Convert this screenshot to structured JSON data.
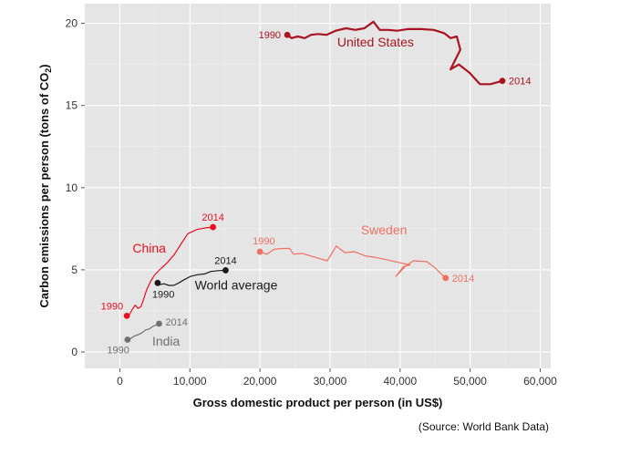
{
  "chart_data": {
    "type": "line",
    "xlabel": "Gross domestic product per person (in US$)",
    "ylabel": "Carbon emissions per person (tons of CO",
    "ylabel_sub": "2",
    "ylabel_suffix": ")",
    "xlim": [
      -5000,
      61500
    ],
    "ylim": [
      -1,
      21.2
    ],
    "x_ticks": [
      0,
      10000,
      20000,
      30000,
      40000,
      50000,
      60000
    ],
    "x_tick_labels": [
      "0",
      "10,000",
      "20,000",
      "30,000",
      "40,000",
      "50,000",
      "60,000"
    ],
    "y_ticks": [
      0,
      5,
      10,
      15,
      20
    ],
    "y_tick_labels": [
      "0",
      "5",
      "10",
      "15",
      "20"
    ],
    "grid": true,
    "background": "#e5e5e5",
    "series": [
      {
        "name": "United States",
        "color": "#a8141f",
        "width": 2.2,
        "start_label": "1990",
        "end_label": "2014",
        "points": [
          [
            23900,
            19.3
          ],
          [
            24500,
            19.1
          ],
          [
            25400,
            19.2
          ],
          [
            26400,
            19.1
          ],
          [
            27300,
            19.3
          ],
          [
            28300,
            19.35
          ],
          [
            29500,
            19.3
          ],
          [
            30800,
            19.55
          ],
          [
            32300,
            19.7
          ],
          [
            33600,
            19.6
          ],
          [
            34900,
            19.7
          ],
          [
            36200,
            20.1
          ],
          [
            37100,
            19.6
          ],
          [
            38300,
            19.6
          ],
          [
            39600,
            19.55
          ],
          [
            41100,
            19.65
          ],
          [
            43000,
            19.65
          ],
          [
            44800,
            19.6
          ],
          [
            46300,
            19.4
          ],
          [
            47200,
            19.1
          ],
          [
            48100,
            19.2
          ],
          [
            48600,
            18.4
          ],
          [
            47200,
            17.2
          ],
          [
            48400,
            17.5
          ],
          [
            49900,
            17.0
          ],
          [
            51400,
            16.3
          ],
          [
            52900,
            16.3
          ],
          [
            54600,
            16.5
          ]
        ],
        "label_xy": [
          36500,
          18.6
        ],
        "label_anchor": "middle"
      },
      {
        "name": "Sweden",
        "color": "#f07060",
        "width": 1.2,
        "start_label": "1990",
        "end_label": "2014",
        "points": [
          [
            20000,
            6.1
          ],
          [
            21000,
            5.95
          ],
          [
            22000,
            6.25
          ],
          [
            23200,
            6.3
          ],
          [
            24200,
            6.3
          ],
          [
            24800,
            5.95
          ],
          [
            26000,
            6.0
          ],
          [
            27200,
            5.85
          ],
          [
            28400,
            5.7
          ],
          [
            29600,
            5.55
          ],
          [
            30900,
            6.45
          ],
          [
            32100,
            6.05
          ],
          [
            33500,
            6.1
          ],
          [
            35000,
            5.85
          ],
          [
            36600,
            5.75
          ],
          [
            38200,
            5.6
          ],
          [
            39800,
            5.45
          ],
          [
            41400,
            5.3
          ],
          [
            40500,
            5.2
          ],
          [
            39400,
            4.6
          ],
          [
            40700,
            5.2
          ],
          [
            41900,
            5.55
          ],
          [
            43800,
            5.5
          ],
          [
            44900,
            5.15
          ],
          [
            46500,
            4.5
          ]
        ],
        "label_xy": [
          37700,
          7.15
        ],
        "label_anchor": "middle"
      },
      {
        "name": "China",
        "color": "#e8101e",
        "width": 1.2,
        "start_label": "1990",
        "end_label": "2014",
        "points": [
          [
            1000,
            2.2
          ],
          [
            1400,
            2.3
          ],
          [
            1800,
            2.6
          ],
          [
            2200,
            2.85
          ],
          [
            2600,
            2.65
          ],
          [
            3000,
            2.75
          ],
          [
            3400,
            3.2
          ],
          [
            3800,
            3.75
          ],
          [
            4400,
            4.3
          ],
          [
            5000,
            4.7
          ],
          [
            5800,
            5.05
          ],
          [
            6800,
            5.45
          ],
          [
            7800,
            5.95
          ],
          [
            8700,
            6.55
          ],
          [
            9700,
            7.2
          ],
          [
            11000,
            7.45
          ],
          [
            12300,
            7.55
          ],
          [
            13300,
            7.6
          ]
        ],
        "label_xy": [
          4200,
          6.05
        ],
        "label_anchor": "middle"
      },
      {
        "name": "World average",
        "color": "#1a1a1a",
        "width": 1.2,
        "start_label": "1990",
        "end_label": "2014",
        "points": [
          [
            5400,
            4.2
          ],
          [
            5800,
            4.1
          ],
          [
            6300,
            4.15
          ],
          [
            7000,
            4.05
          ],
          [
            7700,
            4.05
          ],
          [
            8400,
            4.2
          ],
          [
            9200,
            4.4
          ],
          [
            10100,
            4.6
          ],
          [
            11100,
            4.7
          ],
          [
            12100,
            4.75
          ],
          [
            13000,
            4.9
          ],
          [
            14000,
            4.95
          ],
          [
            15100,
            4.97
          ]
        ],
        "label_xy": [
          16600,
          3.8
        ],
        "label_anchor": "middle"
      },
      {
        "name": "India",
        "color": "#707070",
        "width": 1.2,
        "start_label": "1990",
        "end_label": "2014",
        "points": [
          [
            1100,
            0.75
          ],
          [
            1500,
            0.8
          ],
          [
            2000,
            0.95
          ],
          [
            2600,
            1.05
          ],
          [
            3100,
            1.15
          ],
          [
            3700,
            1.35
          ],
          [
            4200,
            1.4
          ],
          [
            4700,
            1.55
          ],
          [
            5600,
            1.72
          ]
        ],
        "label_xy": [
          6600,
          0.4
        ],
        "label_anchor": "middle"
      }
    ]
  },
  "source": "(Source: World Bank Data)"
}
